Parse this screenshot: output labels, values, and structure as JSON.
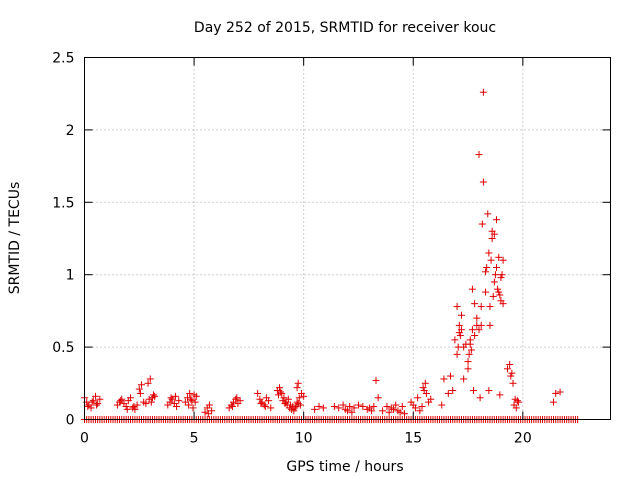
{
  "chart_data": {
    "type": "scatter",
    "title": "Day 252 of 2015, SRMTID for receiver kouc",
    "xlabel": "GPS time / hours",
    "ylabel": "SRMTID / TECUs",
    "xlim": [
      0,
      24
    ],
    "ylim": [
      0,
      2.5
    ],
    "xticks": [
      0,
      5,
      10,
      15,
      20
    ],
    "yticks": [
      0,
      0.5,
      1,
      1.5,
      2,
      2.5
    ],
    "xtick_labels": [
      "0",
      "5",
      "10",
      "15",
      "20"
    ],
    "ytick_labels": [
      "0",
      "0.5",
      "1",
      "1.5",
      "2",
      "2.5"
    ],
    "grid": true,
    "marker": "+",
    "color": "#e00000",
    "zero_baseline_range": [
      0,
      22.5
    ],
    "series": [
      {
        "name": "SRMTID",
        "x": [
          0.0,
          0.1,
          0.2,
          0.3,
          0.4,
          0.5,
          0.6,
          0.7,
          0.15,
          0.35,
          0.55,
          1.5,
          1.6,
          1.7,
          1.8,
          1.9,
          2.0,
          2.1,
          2.2,
          2.3,
          2.4,
          2.5,
          2.6,
          2.7,
          2.8,
          1.65,
          1.95,
          2.25,
          2.55,
          2.9,
          3.0,
          3.1,
          3.2,
          2.95,
          3.05,
          3.15,
          3.8,
          3.9,
          4.0,
          4.1,
          4.2,
          4.3,
          3.95,
          4.15,
          4.6,
          4.7,
          4.8,
          4.9,
          5.0,
          5.1,
          4.75,
          4.85,
          4.95,
          5.05,
          5.5,
          5.6,
          5.7,
          5.8,
          5.65,
          6.6,
          6.7,
          6.8,
          6.9,
          7.0,
          7.1,
          6.75,
          6.95,
          7.9,
          8.0,
          8.1,
          8.2,
          8.3,
          8.4,
          8.5,
          8.05,
          8.25,
          8.8,
          8.9,
          9.0,
          9.1,
          9.2,
          9.3,
          9.4,
          9.5,
          9.6,
          9.7,
          9.8,
          9.9,
          10.0,
          8.85,
          8.95,
          9.05,
          9.15,
          9.25,
          9.35,
          9.45,
          9.55,
          9.65,
          9.75,
          9.85,
          9.7,
          9.75,
          10.5,
          10.7,
          10.9,
          11.4,
          11.6,
          11.8,
          11.9,
          12.0,
          12.1,
          12.2,
          12.3,
          12.5,
          12.7,
          12.9,
          13.0,
          13.1,
          13.2,
          13.3,
          13.4,
          13.6,
          13.8,
          13.9,
          14.0,
          14.1,
          14.2,
          14.3,
          14.4,
          14.5,
          14.6,
          14.9,
          15.0,
          15.1,
          15.2,
          15.3,
          15.4,
          15.5,
          15.6,
          15.7,
          15.8,
          15.45,
          15.55,
          16.3,
          16.4,
          16.6,
          16.7,
          16.8,
          16.9,
          17.0,
          17.1,
          17.2,
          17.3,
          17.4,
          17.5,
          17.6,
          17.7,
          17.8,
          17.9,
          18.0,
          18.1,
          18.2,
          18.3,
          18.4,
          18.5,
          18.6,
          18.7,
          18.8,
          18.9,
          19.0,
          19.1,
          19.3,
          19.4,
          19.5,
          19.6,
          19.7,
          19.8,
          17.0,
          17.05,
          17.1,
          17.15,
          17.2,
          17.3,
          17.5,
          17.55,
          17.6,
          17.65,
          17.7,
          17.8,
          17.9,
          18.0,
          18.1,
          18.15,
          18.2,
          18.3,
          18.35,
          18.45,
          18.5,
          18.55,
          18.6,
          18.65,
          18.7,
          18.75,
          18.8,
          18.85,
          18.9,
          18.95,
          19.0,
          19.05,
          19.1,
          17.75,
          18.05,
          18.45,
          18.95,
          19.45,
          19.55,
          19.65,
          19.75,
          21.4,
          21.5,
          21.7
        ],
        "y": [
          0.15,
          0.12,
          0.1,
          0.08,
          0.13,
          0.16,
          0.11,
          0.14,
          0.09,
          0.12,
          0.1,
          0.1,
          0.12,
          0.14,
          0.11,
          0.09,
          0.13,
          0.15,
          0.08,
          0.07,
          0.1,
          0.21,
          0.24,
          0.12,
          0.11,
          0.13,
          0.07,
          0.09,
          0.18,
          0.25,
          0.28,
          0.15,
          0.16,
          0.14,
          0.12,
          0.17,
          0.1,
          0.12,
          0.14,
          0.11,
          0.09,
          0.13,
          0.15,
          0.16,
          0.12,
          0.15,
          0.18,
          0.13,
          0.17,
          0.16,
          0.1,
          0.14,
          0.08,
          0.12,
          0.05,
          0.08,
          0.1,
          0.06,
          0.04,
          0.08,
          0.1,
          0.12,
          0.14,
          0.11,
          0.13,
          0.09,
          0.15,
          0.18,
          0.14,
          0.12,
          0.1,
          0.15,
          0.13,
          0.08,
          0.11,
          0.09,
          0.2,
          0.22,
          0.18,
          0.15,
          0.12,
          0.14,
          0.1,
          0.09,
          0.08,
          0.12,
          0.15,
          0.18,
          0.16,
          0.17,
          0.19,
          0.13,
          0.11,
          0.1,
          0.08,
          0.07,
          0.06,
          0.09,
          0.11,
          0.1,
          0.22,
          0.25,
          0.07,
          0.09,
          0.08,
          0.09,
          0.08,
          0.1,
          0.07,
          0.06,
          0.09,
          0.05,
          0.08,
          0.1,
          0.09,
          0.07,
          0.08,
          0.06,
          0.09,
          0.27,
          0.15,
          0.06,
          0.09,
          0.05,
          0.08,
          0.07,
          0.1,
          0.06,
          0.05,
          0.09,
          0.04,
          0.12,
          0.1,
          0.08,
          0.15,
          0.06,
          0.09,
          0.2,
          0.18,
          0.12,
          0.14,
          0.22,
          0.25,
          0.1,
          0.28,
          0.18,
          0.3,
          0.2,
          0.55,
          0.78,
          0.65,
          0.72,
          0.5,
          0.52,
          0.4,
          0.55,
          0.9,
          0.8,
          0.7,
          1.83,
          0.65,
          2.26,
          1.02,
          1.42,
          0.78,
          1.3,
          0.95,
          1.38,
          1.12,
          0.98,
          0.8,
          0.35,
          0.38,
          0.32,
          0.1,
          0.08,
          0.12,
          0.45,
          0.5,
          0.6,
          0.58,
          0.62,
          0.28,
          0.35,
          0.45,
          0.52,
          0.48,
          0.62,
          0.58,
          0.65,
          0.62,
          0.78,
          1.35,
          1.64,
          0.88,
          1.05,
          1.15,
          0.65,
          1.1,
          1.25,
          0.85,
          1.28,
          1.0,
          1.05,
          0.9,
          0.88,
          0.86,
          0.82,
          1.0,
          1.1,
          0.2,
          0.15,
          0.2,
          0.17,
          0.3,
          0.25,
          0.14,
          0.13,
          0.12,
          0.18,
          0.19
        ]
      }
    ]
  }
}
